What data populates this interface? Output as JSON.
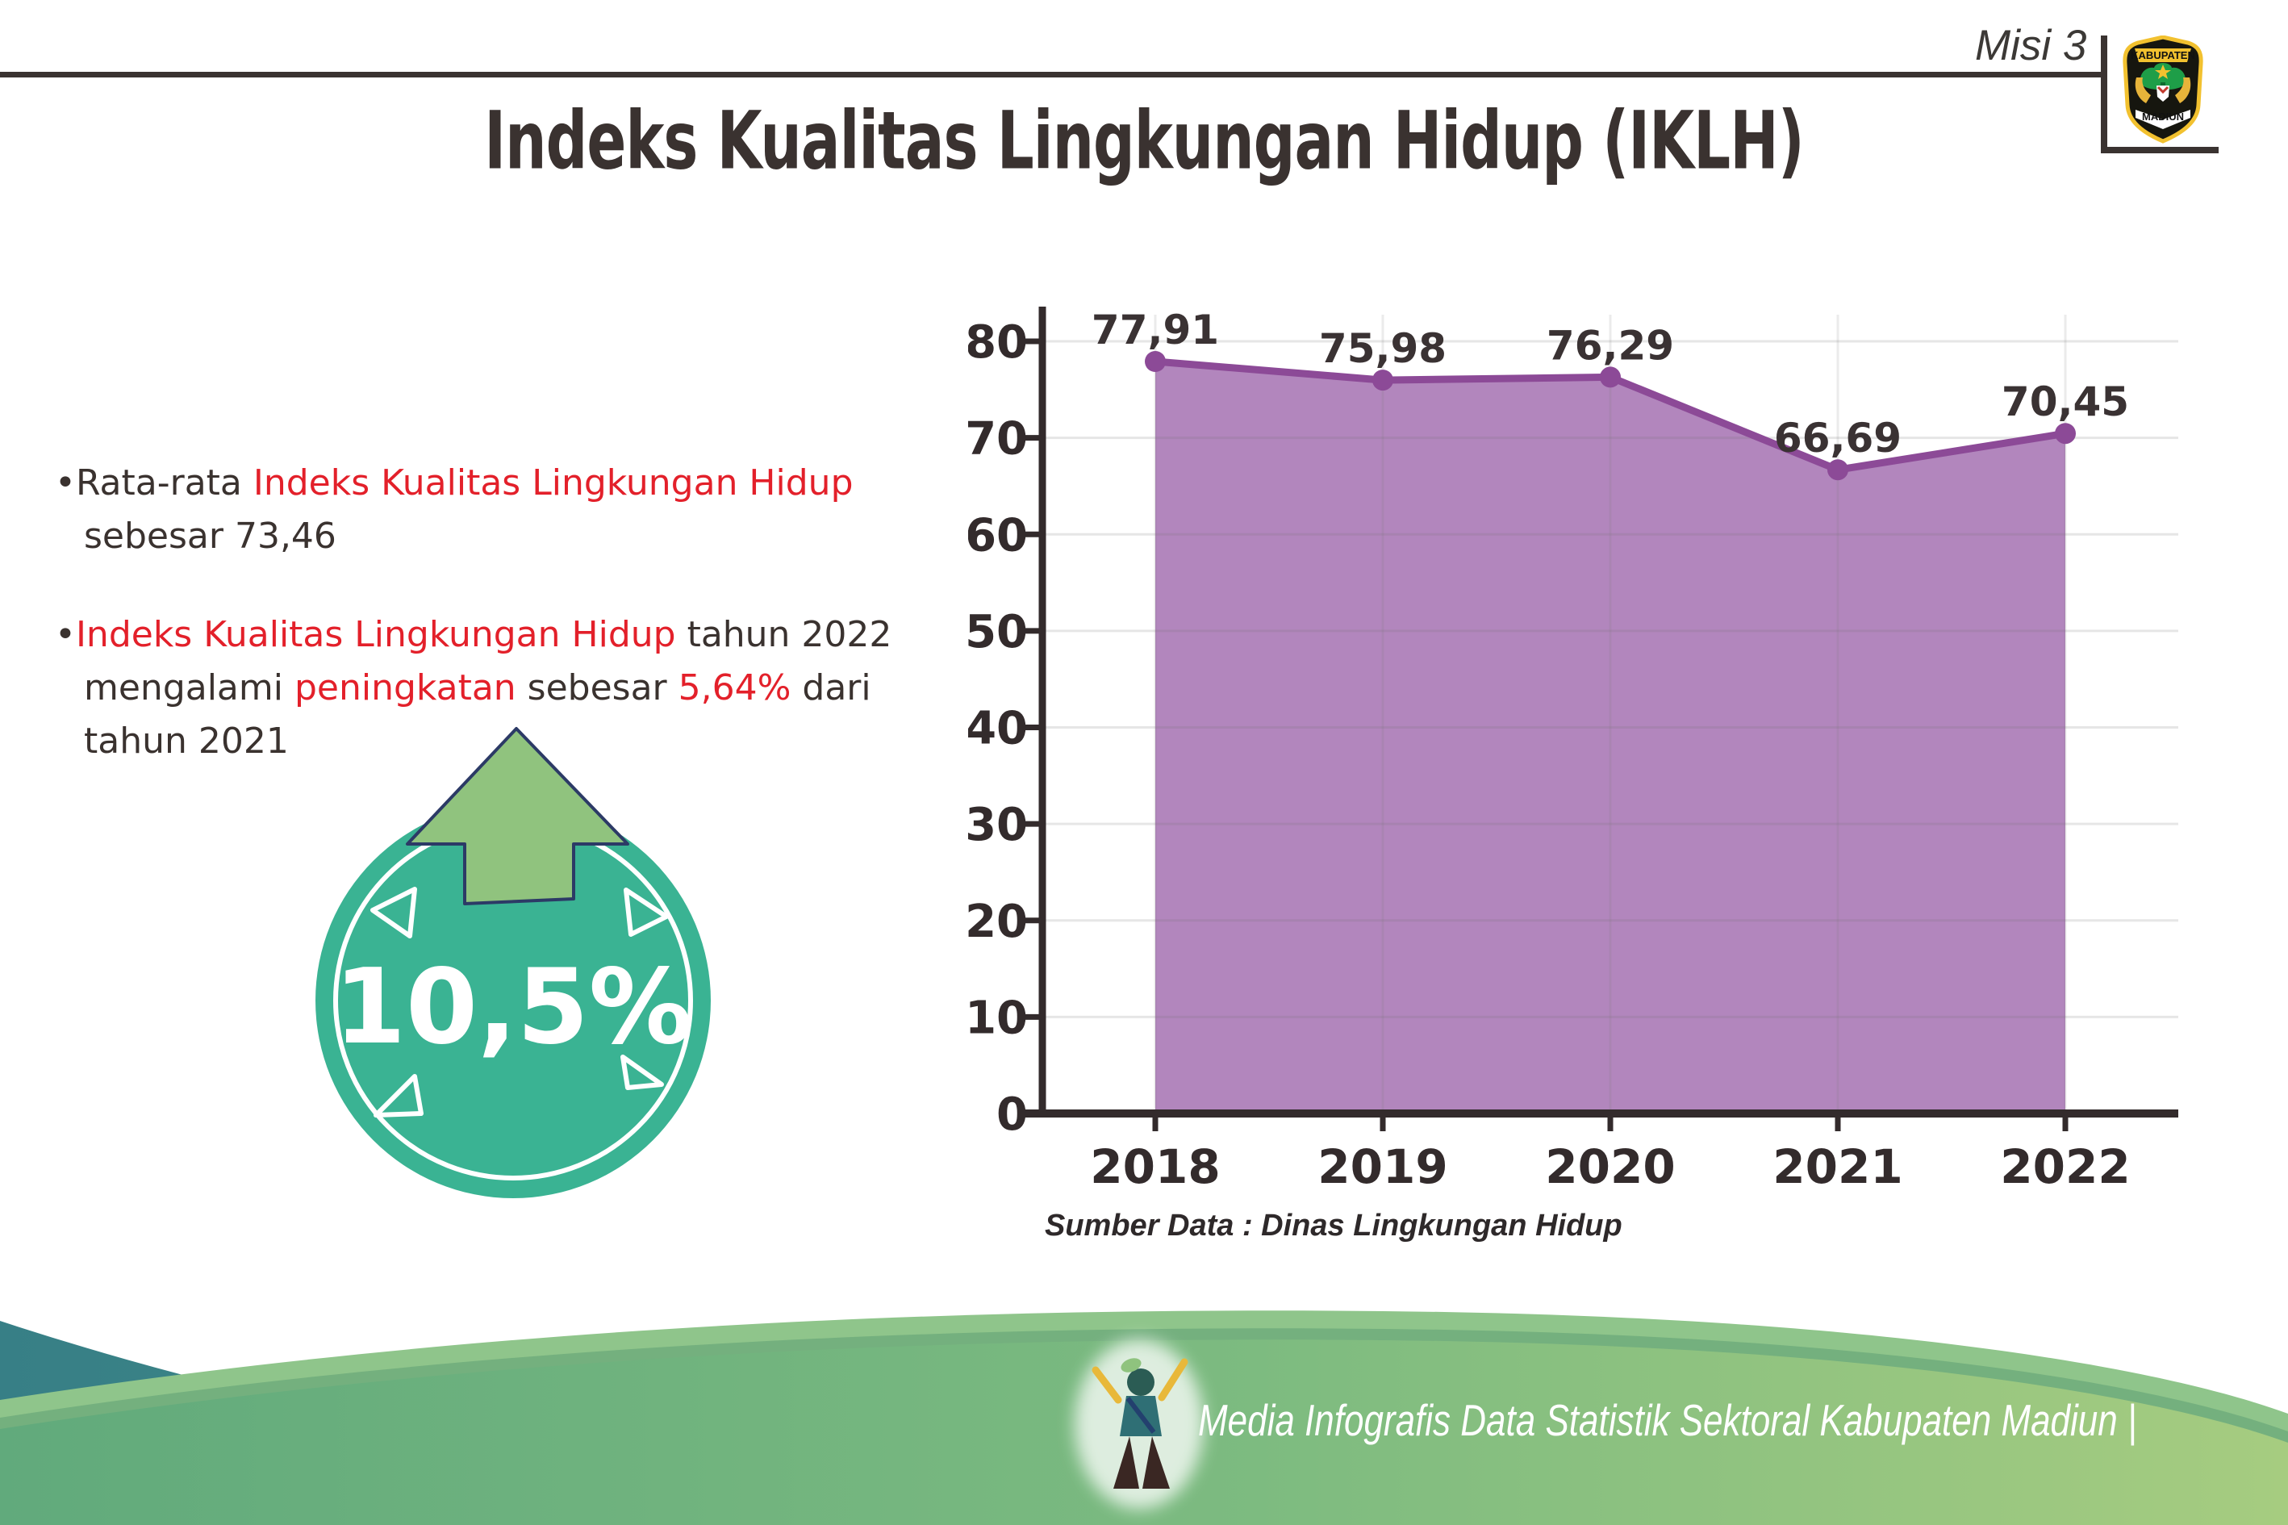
{
  "header": {
    "misi_label": "Misi 3",
    "title": "Indeks Kualitas Lingkungan Hidup (IKLH)",
    "logo_top": "KABUPATEN",
    "logo_bottom": "MADIUN"
  },
  "bullets": {
    "b1_dark1": "•Rata-rata ",
    "b1_red": "Indeks Kualitas Lingkungan Hidup",
    "b1_line2": "sebesar 73,46",
    "b2_bullet": "•",
    "b2_red1": "Indeks Kualitas Lingkungan Hidup",
    "b2_dark1": " tahun 2022",
    "b2_dark2": "mengalami ",
    "b2_red2": "peningkatan",
    "b2_dark3": " sebesar ",
    "b2_red3": "5,64%",
    "b2_dark4": " dari",
    "b2_line3": "tahun 2021"
  },
  "badge": {
    "value": "10,5%"
  },
  "chart_data": {
    "type": "area",
    "x": [
      "2018",
      "2019",
      "2020",
      "2021",
      "2022"
    ],
    "series": [
      {
        "name": "IKLH",
        "values": [
          77.91,
          75.98,
          76.29,
          66.69,
          70.45
        ]
      }
    ],
    "labels": [
      "77,91",
      "75,98",
      "76,29",
      "66,69",
      "70,45"
    ],
    "title": "",
    "xlabel": "",
    "ylabel": "",
    "ylim": [
      0,
      80
    ],
    "yticks": [
      0,
      10,
      20,
      30,
      40,
      50,
      60,
      70,
      80
    ],
    "grid": true,
    "legend": "none",
    "area_color": "#b286bd",
    "line_color": "#8c4a97",
    "source_note": "Sumber Data : Dinas Lingkungan Hidup"
  },
  "footer": {
    "caption": "Media Infografis Data Statistik Sektoral Kabupaten Madiun |"
  },
  "colors": {
    "dark_text": "#3a322f",
    "accent_red": "#e3202a",
    "badge_teal": "#3ab393",
    "arrow_green": "#90c37e",
    "area_purple": "#b286bd",
    "line_purple": "#8c4a97",
    "wave_teal": "#3a8b88",
    "wave_green_light": "#a6cc80",
    "wave_green_dark": "#61aa7c"
  }
}
